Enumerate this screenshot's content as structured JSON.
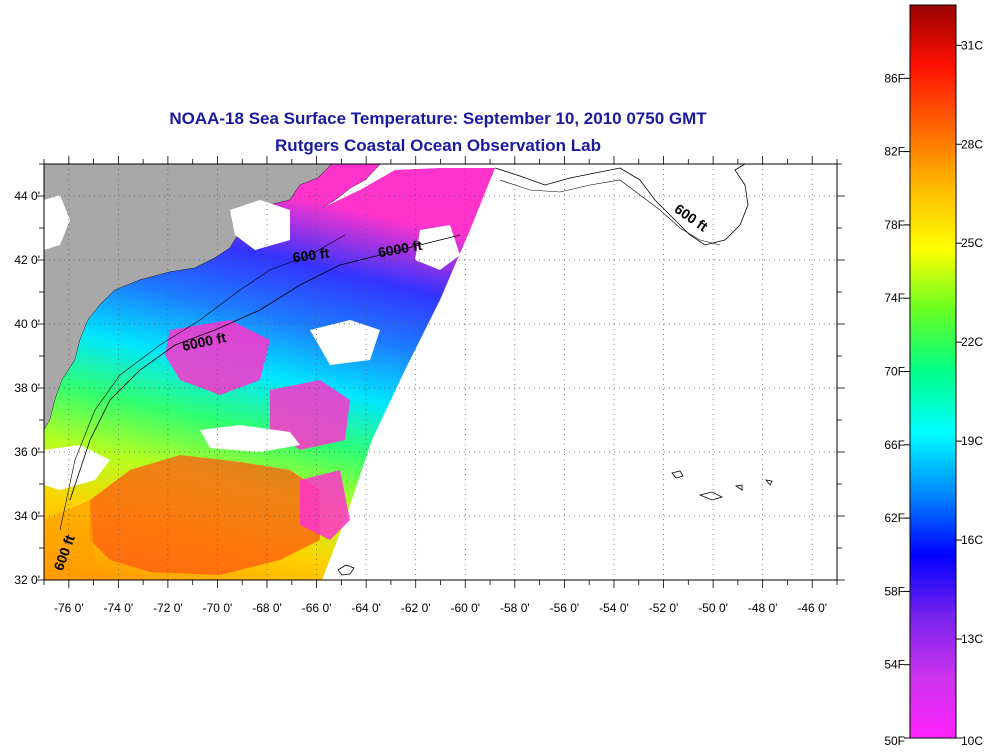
{
  "title_line1": "NOAA-18 Sea Surface Temperature:  September 10, 2010 0750 GMT",
  "title_line2": "Rutgers Coastal Ocean Observation Lab",
  "map": {
    "lon_range": [
      -77,
      -45
    ],
    "lat_range": [
      32,
      45
    ],
    "lon_ticks": [
      "-76 0'",
      "-74 0'",
      "-72 0'",
      "-70 0'",
      "-68 0'",
      "-66 0'",
      "-64 0'",
      "-62 0'",
      "-60 0'",
      "-58 0'",
      "-56 0'",
      "-54 0'",
      "-52 0'",
      "-50 0'",
      "-48 0'",
      "-46 0'"
    ],
    "lat_ticks": [
      "32 0'",
      "34 0'",
      "36 0'",
      "38 0'",
      "40 0'",
      "42 0'",
      "44 0'"
    ],
    "contours": [
      {
        "label": "600 ft",
        "lon": -66.2,
        "lat": 42.0
      },
      {
        "label": "6000 ft",
        "lon": -62.6,
        "lat": 42.2
      },
      {
        "label": "6000 ft",
        "lon": -70.5,
        "lat": 39.3
      },
      {
        "label": "600 ft",
        "lon": -51.0,
        "lat": 43.2
      },
      {
        "label": "600 ft",
        "lon": -76.0,
        "lat": 32.8
      }
    ],
    "colors": {
      "land": "#a8a8a8",
      "cloud": "#ffffff"
    }
  },
  "colorbar": {
    "fahrenheit_labels": [
      "86F",
      "82F",
      "78F",
      "74F",
      "70F",
      "66F",
      "62F",
      "58F",
      "54F",
      "50F"
    ],
    "celsius_labels": [
      "31C",
      "28C",
      "25C",
      "22C",
      "19C",
      "16C",
      "13C",
      "10C"
    ],
    "range_f": [
      50,
      90
    ],
    "gradient": [
      "#ff22ff",
      "#cc33ee",
      "#7722ee",
      "#0000ff",
      "#0088ff",
      "#00ffff",
      "#00ff88",
      "#66ff22",
      "#ffff00",
      "#ffbb00",
      "#ff6600",
      "#ff1100",
      "#990000"
    ]
  }
}
